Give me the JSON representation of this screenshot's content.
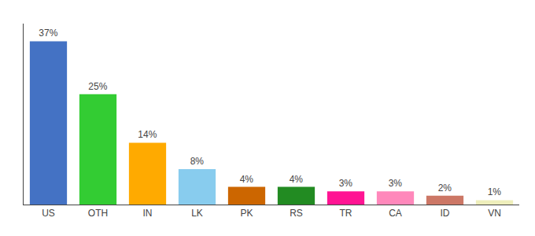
{
  "chart_data": {
    "type": "bar",
    "categories": [
      "US",
      "OTH",
      "IN",
      "LK",
      "PK",
      "RS",
      "TR",
      "CA",
      "ID",
      "VN"
    ],
    "values": [
      37,
      25,
      14,
      8,
      4,
      4,
      3,
      3,
      2,
      1
    ],
    "value_labels": [
      "37%",
      "25%",
      "14%",
      "8%",
      "4%",
      "4%",
      "3%",
      "3%",
      "2%",
      "1%"
    ],
    "colors": [
      "#4472c4",
      "#33cc33",
      "#ffaa00",
      "#88ccee",
      "#cc6600",
      "#228b22",
      "#ff1493",
      "#ff88bb",
      "#cc7766",
      "#eeeebb"
    ],
    "ylim": [
      0,
      41
    ],
    "grid": false,
    "data_labels": true,
    "tick_labels": "x"
  }
}
